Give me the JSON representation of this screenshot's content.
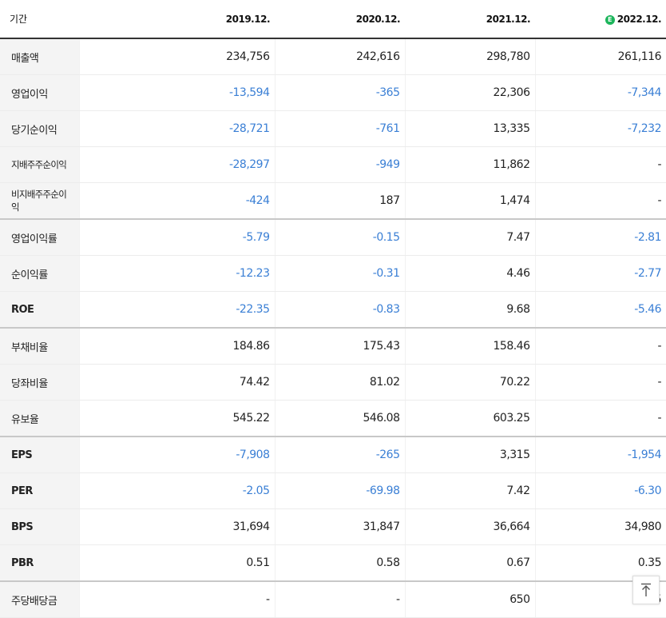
{
  "header": {
    "period_label": "기간",
    "estimate_badge": "E",
    "periods": [
      "2019.12.",
      "2020.12.",
      "2021.12.",
      "2022.12."
    ]
  },
  "rows": [
    {
      "label": "매출액",
      "values": [
        "234,756",
        "242,616",
        "298,780",
        "261,116"
      ]
    },
    {
      "label": "영업이익",
      "values": [
        "-13,594",
        "-365",
        "22,306",
        "-7,344"
      ]
    },
    {
      "label": "당기순이익",
      "values": [
        "-28,721",
        "-761",
        "13,335",
        "-7,232"
      ]
    },
    {
      "label": "지배주주순이익",
      "values": [
        "-28,297",
        "-949",
        "11,862",
        "-"
      ]
    },
    {
      "label": "비지배주주순이익",
      "values": [
        "-424",
        "187",
        "1,474",
        "-"
      ]
    },
    {
      "label": "영업이익률",
      "values": [
        "-5.79",
        "-0.15",
        "7.47",
        "-2.81"
      ]
    },
    {
      "label": "순이익률",
      "values": [
        "-12.23",
        "-0.31",
        "4.46",
        "-2.77"
      ]
    },
    {
      "label": "ROE",
      "values": [
        "-22.35",
        "-0.83",
        "9.68",
        "-5.46"
      ]
    },
    {
      "label": "부채비율",
      "values": [
        "184.86",
        "175.43",
        "158.46",
        "-"
      ]
    },
    {
      "label": "당좌비율",
      "values": [
        "74.42",
        "81.02",
        "70.22",
        "-"
      ]
    },
    {
      "label": "유보율",
      "values": [
        "545.22",
        "546.08",
        "603.25",
        "-"
      ]
    },
    {
      "label": "EPS",
      "values": [
        "-7,908",
        "-265",
        "3,315",
        "-1,954"
      ]
    },
    {
      "label": "PER",
      "values": [
        "-2.05",
        "-69.98",
        "7.42",
        "-6.30"
      ]
    },
    {
      "label": "BPS",
      "values": [
        "31,694",
        "31,847",
        "36,664",
        "34,980"
      ]
    },
    {
      "label": "PBR",
      "values": [
        "0.51",
        "0.58",
        "0.67",
        "0.35"
      ]
    },
    {
      "label": "주당배당금",
      "values": [
        "-",
        "-",
        "650",
        "5"
      ]
    }
  ],
  "scroll_top_button": {
    "icon": "arrow-up-to-top-icon"
  },
  "colors": {
    "negative": "#3a7fd5",
    "label_bg": "#f4f4f4",
    "estimate_badge": "#1cb55b"
  }
}
